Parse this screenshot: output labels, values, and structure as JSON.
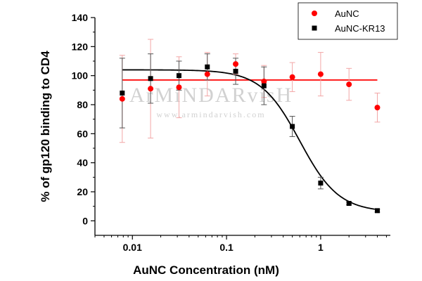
{
  "chart_data": {
    "type": "scatter",
    "xlabel": "AuNC Concentration (nM)",
    "ylabel": "% of gp120 binding to CD4",
    "x_scale": "log",
    "xlim": [
      0.004,
      5.5
    ],
    "ylim": [
      -10,
      140
    ],
    "x_ticks": [
      0.01,
      0.1,
      1
    ],
    "x_tick_labels": [
      "0.01",
      "0.1",
      "1"
    ],
    "y_ticks": [
      0,
      20,
      40,
      60,
      80,
      100,
      120,
      140
    ],
    "y_tick_labels": [
      "0",
      "20",
      "40",
      "60",
      "80",
      "100",
      "120",
      "140"
    ],
    "grid": false,
    "legend_position": "top-right",
    "series": [
      {
        "name": "AuNC",
        "marker": "circle",
        "color": "#ff0000",
        "x": [
          0.0078,
          0.0156,
          0.03125,
          0.0625,
          0.125,
          0.25,
          0.5,
          1,
          2,
          4
        ],
        "y": [
          84,
          91,
          92,
          101,
          108,
          96,
          99,
          101,
          94,
          78
        ],
        "error": [
          30,
          34,
          21,
          15,
          7,
          11,
          10,
          15,
          11,
          10
        ],
        "fit": {
          "type": "horizontal",
          "y": 97
        }
      },
      {
        "name": "AuNC-KR13",
        "marker": "square",
        "color": "#000000",
        "x": [
          0.0078,
          0.0156,
          0.03125,
          0.0625,
          0.125,
          0.25,
          0.5,
          1,
          2,
          4
        ],
        "y": [
          88,
          98,
          100,
          106,
          103,
          93,
          65,
          26,
          12,
          7
        ],
        "error": [
          24,
          17,
          10,
          9,
          9,
          13,
          7,
          4,
          1,
          1
        ],
        "fit": {
          "type": "sigmoid",
          "top": 104,
          "bottom": 6,
          "ec50": 0.6,
          "hill": 2.1
        }
      }
    ]
  },
  "watermark": {
    "logo": "ArMiNDARvisH",
    "url": "www.armindarvish.com"
  }
}
